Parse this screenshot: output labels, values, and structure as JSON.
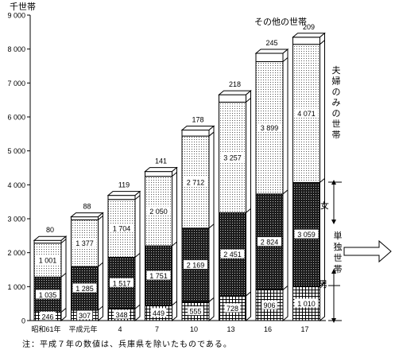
{
  "chart_data": {
    "type": "bar",
    "stacked": true,
    "yunit": "千世帯",
    "ylim": [
      0,
      9000
    ],
    "yticks": [
      "0",
      "1 000",
      "2 000",
      "3 000",
      "4 000",
      "5 000",
      "6 000",
      "7 000",
      "8 000",
      "9 000"
    ],
    "categories": [
      "昭和61年",
      "平成元年",
      "4",
      "7",
      "10",
      "13",
      "16",
      "17"
    ],
    "series": [
      {
        "name": "男",
        "values": [
          246,
          307,
          348,
          449,
          555,
          728,
          906,
          1010
        ],
        "labels": [
          "246",
          "307",
          "348",
          "449",
          "555",
          "728",
          "906",
          "1 010"
        ]
      },
      {
        "name": "女",
        "values": [
          1035,
          1285,
          1517,
          1751,
          2169,
          2451,
          2824,
          3059
        ],
        "labels": [
          "1 035",
          "1 285",
          "1 517",
          "1 751",
          "2 169",
          "2 451",
          "2 824",
          "3 059"
        ]
      },
      {
        "name": "夫婦のみの世帯",
        "values": [
          1001,
          1377,
          1704,
          2050,
          2712,
          3257,
          3899,
          4071
        ],
        "labels": [
          "1 001",
          "1 377",
          "1 704",
          "2 050",
          "2 712",
          "3 257",
          "3 899",
          "4 071"
        ]
      },
      {
        "name": "その他の世帯",
        "values": [
          80,
          88,
          119,
          141,
          178,
          218,
          245,
          209
        ],
        "labels": [
          "80",
          "88",
          "119",
          "141",
          "178",
          "218",
          "245",
          "209"
        ]
      }
    ],
    "group_label": "単独世帯",
    "colors": {
      "male": "#ffffff",
      "female": "#2a2a2a",
      "couple": "#f2f2f2",
      "other": "#ffffff",
      "line": "#000000"
    }
  },
  "labels": {
    "title_unit": "千世帯",
    "other_households": "その他の世帯",
    "couple_households": "夫婦のみの世帯",
    "single_households": "単独世帯",
    "female": "女",
    "male": "男"
  },
  "note": "注：平成７年の数値は、兵庫県を除いたものである。"
}
